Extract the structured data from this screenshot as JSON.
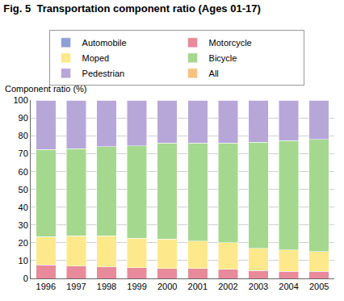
{
  "chart_data": {
    "type": "bar",
    "title": "Fig. 5  Transportation component ratio (Ages 01-17)",
    "y_label": "Component ratio (%)",
    "stacked": true,
    "grid": true,
    "legend": "top",
    "categories": [
      "1996",
      "1997",
      "1998",
      "1999",
      "2000",
      "2001",
      "2002",
      "2003",
      "2004",
      "2005"
    ],
    "series": [
      {
        "name": "Automobile",
        "color": "#8f9fd6",
        "values": [
          0,
          0,
          0,
          0,
          0,
          0,
          0,
          0,
          0,
          0
        ]
      },
      {
        "name": "Motorcycle",
        "color": "#e88a9a",
        "values": [
          7.5,
          7,
          6.5,
          6,
          5.5,
          5.5,
          5,
          4.5,
          4,
          4
        ]
      },
      {
        "name": "Moped",
        "color": "#fde98b",
        "values": [
          16,
          17,
          17.5,
          16.5,
          16.5,
          15.5,
          15,
          12.5,
          12,
          11
        ]
      },
      {
        "name": "Bicycle",
        "color": "#a5d88f",
        "values": [
          49,
          49,
          50,
          52,
          54,
          55,
          56,
          59.5,
          61.5,
          63
        ]
      },
      {
        "name": "Pedestrian",
        "color": "#b7a7d8",
        "values": [
          27.5,
          27,
          26,
          25.5,
          24,
          24,
          24,
          23.5,
          22.5,
          22
        ]
      },
      {
        "name": "All",
        "color": "#f7c27d",
        "values": [
          0,
          0,
          0,
          0,
          0,
          0,
          0,
          0,
          0,
          0
        ]
      }
    ],
    "ylim": [
      0,
      100
    ],
    "yticks": [
      0,
      10,
      20,
      30,
      40,
      50,
      60,
      70,
      80,
      90,
      100
    ]
  }
}
